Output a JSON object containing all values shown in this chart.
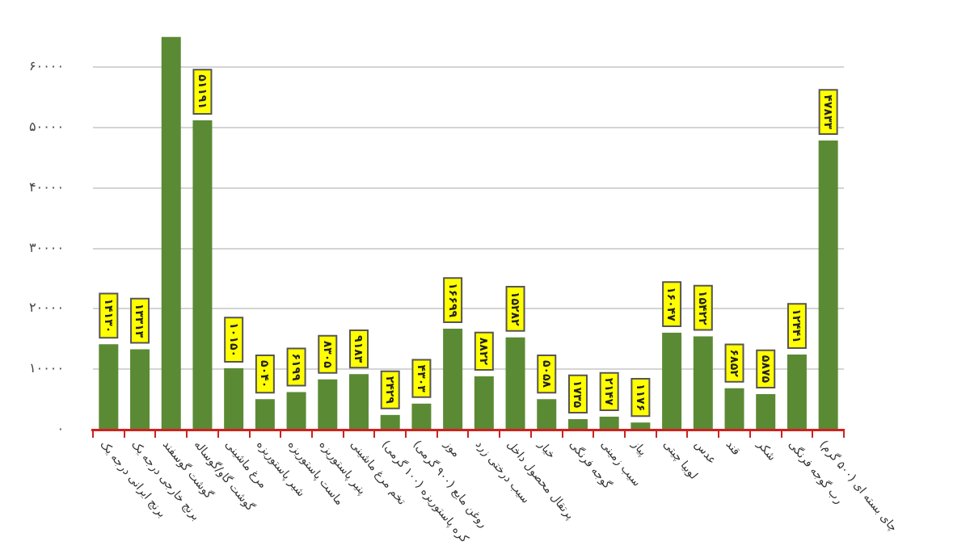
{
  "chart_data": {
    "type": "bar",
    "categories": [
      "برنج ایرانی درجه یک",
      "برنج خارجی درجه یک",
      "گوشت گوسفند",
      "گوشت گاو/گوساله",
      "مرغ ماشینی",
      "شیر پاستوریزه",
      "ماست پاستوریزه",
      "پنیر پاستوریزه",
      "تخم مرغ ماشینی",
      "کره پاستوریزه (۱۰۰ گرمی)",
      "روغن مایع (۹۰۰ گرمی)",
      "موز",
      "سیب درختی زرد",
      "پرتقال محصول داخل",
      "خیار",
      "گوجه فرنگی",
      "سیب زمینی",
      "پیاز",
      "لوبیا چیتی",
      "عدس",
      "قند",
      "شکر",
      "رب گوجه فرنگی",
      "چای بسته ای (۵۰۰ گرم)"
    ],
    "values": [
      14130,
      13313,
      65000,
      51191,
      10150,
      5040,
      6199,
      8305,
      9183,
      2429,
      4303,
      16699,
      8822,
      15282,
      5058,
      1735,
      2147,
      1176,
      16047,
      15422,
      6852,
      5875,
      12441,
      47833
    ],
    "value_labels": [
      "۱۴۱۳۰",
      "۱۳۳۱۳",
      null,
      "۵۱۱۹۱",
      "۱۰۱۵۰",
      "۵۰۴۰",
      "۶۱۹۹",
      "۸۳۰۵",
      "۹۱۸۳",
      "۲۴۲۹",
      "۴۳۰۳",
      "۱۶۶۹۹",
      "۸۸۲۲",
      "۱۵۲۸۲",
      "۵۰۵۸",
      "۱۷۳۵",
      "۲۱۴۷",
      "۱۱۷۶",
      "۱۶۰۴۷",
      "۱۵۴۲۲",
      "۶۸۵۲",
      "۵۸۷۵",
      "۱۲۴۴۱",
      "۴۷۸۳۳"
    ],
    "color": "#5b8a34",
    "ylim": [
      0,
      65000
    ],
    "yticks": [
      {
        "value": 0,
        "label": "۰"
      },
      {
        "value": 10000,
        "label": "۱۰۰۰۰"
      },
      {
        "value": 20000,
        "label": "۲۰۰۰۰"
      },
      {
        "value": 30000,
        "label": "۳۰۰۰۰"
      },
      {
        "value": 40000,
        "label": "۴۰۰۰۰"
      },
      {
        "value": 50000,
        "label": "۵۰۰۰۰"
      },
      {
        "value": 60000,
        "label": "۶۰۰۰۰"
      }
    ],
    "grid": "y",
    "legend": false
  }
}
